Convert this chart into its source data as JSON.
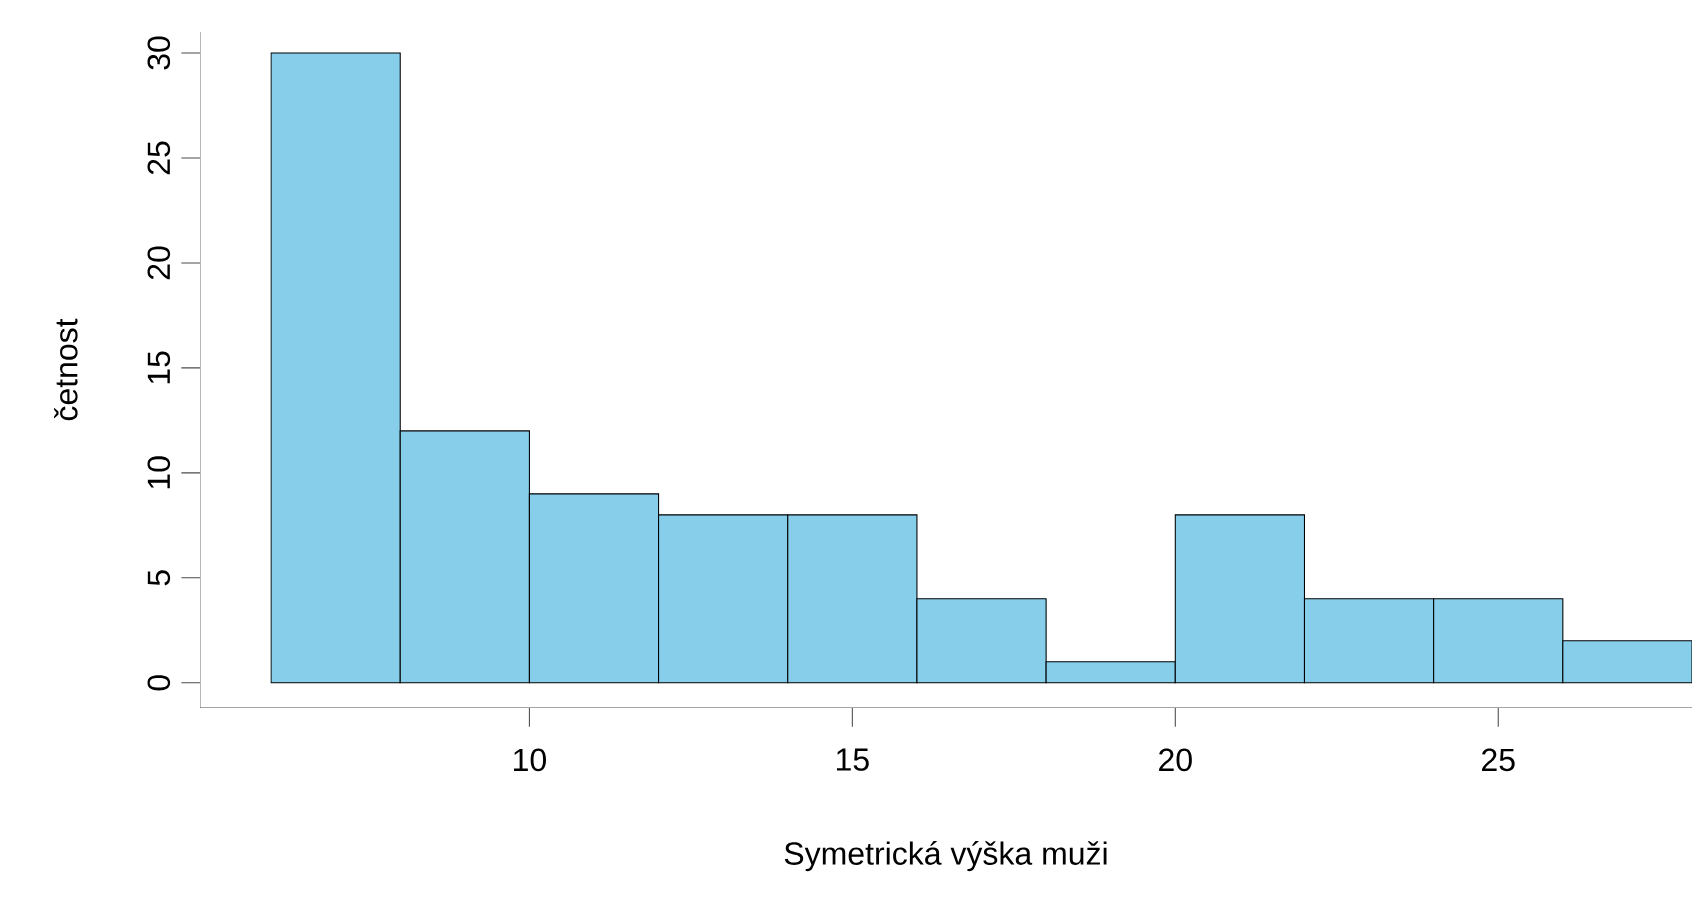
{
  "chart_data": {
    "type": "histogram",
    "xlabel": "Symetrická výška muži",
    "ylabel": "četnost",
    "bins": [
      6,
      8,
      10,
      12,
      14,
      16,
      18,
      20,
      22,
      24,
      26,
      28
    ],
    "values": [
      30,
      12,
      9,
      8,
      8,
      4,
      1,
      8,
      4,
      4,
      2
    ],
    "color": "#87ceeb",
    "xlim": [
      4.9,
      28
    ],
    "ylim": [
      -1.2,
      31
    ],
    "xticks": [
      10,
      15,
      20,
      25
    ],
    "yticks": [
      0,
      5,
      10,
      15,
      20,
      25,
      30
    ]
  }
}
